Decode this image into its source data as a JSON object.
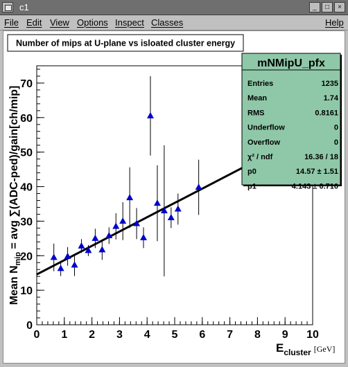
{
  "window": {
    "title": "c1",
    "buttons": {
      "minimize": "_",
      "maximize": "□",
      "close": "×"
    }
  },
  "menu": {
    "items": [
      "File",
      "Edit",
      "View",
      "Options",
      "Inspect",
      "Classes"
    ],
    "help": "Help"
  },
  "chart_data": {
    "type": "scatter",
    "title": "Number of mips at U-plane vs isloated cluster energy",
    "xlabel": {
      "main": "E",
      "sub": "cluster",
      "unit": "[GeV]"
    },
    "ylabel": {
      "pre": "Mean N",
      "sub": "mip",
      "post": " = avg ∑(ADC-ped)/gain[ch/mip]"
    },
    "xlim": [
      0,
      10
    ],
    "ylim": [
      0,
      75
    ],
    "xticks": [
      0,
      1,
      2,
      3,
      4,
      5,
      6,
      7,
      8,
      9,
      10
    ],
    "yticks": [
      0,
      10,
      20,
      30,
      40,
      50,
      60,
      70
    ],
    "grid": false,
    "series": [
      {
        "marker_color": "#0000cc",
        "points": [
          {
            "x": 0.62,
            "y": 19.5,
            "err": 4.0
          },
          {
            "x": 0.87,
            "y": 16.3,
            "err": 2.2
          },
          {
            "x": 1.12,
            "y": 19.8,
            "err": 2.7
          },
          {
            "x": 1.37,
            "y": 17.3,
            "err": 3.2
          },
          {
            "x": 1.62,
            "y": 22.8,
            "err": 2.0
          },
          {
            "x": 1.87,
            "y": 21.5,
            "err": 1.6
          },
          {
            "x": 2.12,
            "y": 25.0,
            "err": 2.8
          },
          {
            "x": 2.37,
            "y": 21.7,
            "err": 2.9
          },
          {
            "x": 2.62,
            "y": 25.8,
            "err": 2.4
          },
          {
            "x": 2.87,
            "y": 28.5,
            "err": 3.8
          },
          {
            "x": 3.12,
            "y": 30.0,
            "err": 5.5
          },
          {
            "x": 3.37,
            "y": 36.8,
            "err": 8.8
          },
          {
            "x": 3.62,
            "y": 29.3,
            "err": 4.5
          },
          {
            "x": 3.87,
            "y": 25.2,
            "err": 3.0
          },
          {
            "x": 4.12,
            "y": 60.5,
            "err": 11.5
          },
          {
            "x": 4.37,
            "y": 35.2,
            "err": 11.0
          },
          {
            "x": 4.62,
            "y": 33.0,
            "err": 19.0
          },
          {
            "x": 4.87,
            "y": 31.0,
            "err": 3.0
          },
          {
            "x": 5.12,
            "y": 33.5,
            "err": 4.5
          },
          {
            "x": 5.87,
            "y": 39.8,
            "err": 8.0
          }
        ]
      }
    ],
    "fit": {
      "p0": 14.57,
      "p1": 4.143,
      "color": "#000000"
    },
    "stats": {
      "name": "mNMipU_pfx",
      "rows": [
        {
          "label": "Entries",
          "value": "1235"
        },
        {
          "label": "Mean",
          "value": "1.74"
        },
        {
          "label": "RMS",
          "value": "0.8161"
        },
        {
          "label": "Underflow",
          "value": "0"
        },
        {
          "label": "Overflow",
          "value": "0"
        },
        {
          "label": "χ² / ndf",
          "value": "16.36 / 18"
        },
        {
          "label": "p0",
          "value": "14.57 ± 1.51"
        },
        {
          "label": "p1",
          "value": "4.143 ± 0.710"
        }
      ],
      "background": "#8fc8a8"
    }
  }
}
